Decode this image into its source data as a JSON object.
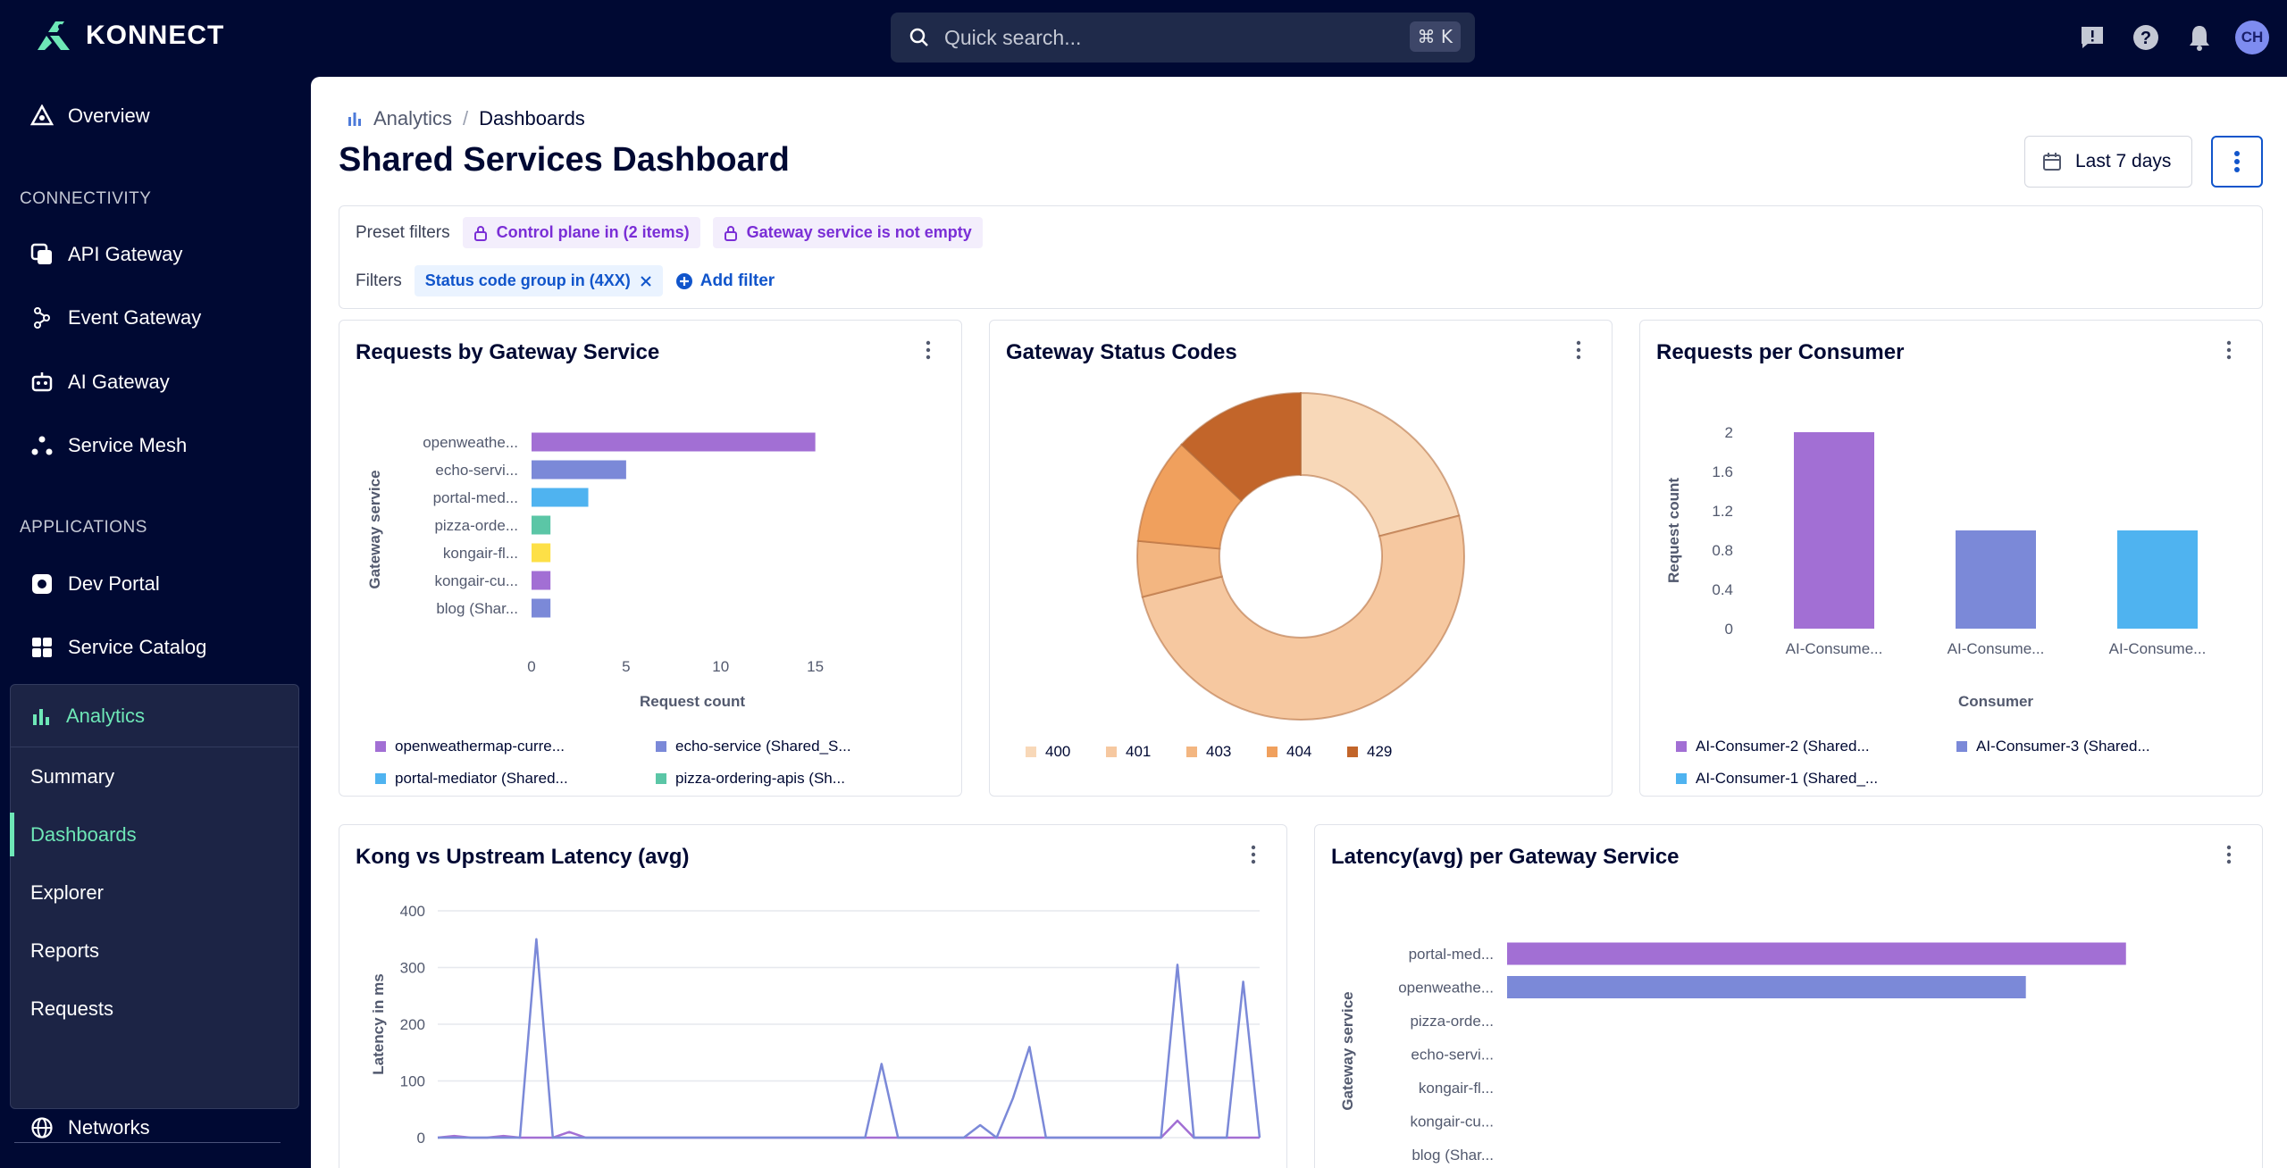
{
  "app": {
    "name": "KONNECT"
  },
  "search": {
    "placeholder": "Quick search...",
    "shortcut": "⌘ K"
  },
  "user": {
    "initials": "CH"
  },
  "sidebar": {
    "top_items": [
      {
        "label": "Overview",
        "icon": "overview-icon"
      }
    ],
    "sections": [
      {
        "label": "CONNECTIVITY",
        "items": [
          {
            "label": "API Gateway",
            "icon": "api-gateway-icon"
          },
          {
            "label": "Event Gateway",
            "icon": "event-gateway-icon"
          },
          {
            "label": "AI Gateway",
            "icon": "ai-gateway-icon"
          },
          {
            "label": "Service Mesh",
            "icon": "service-mesh-icon"
          }
        ]
      },
      {
        "label": "APPLICATIONS",
        "items": [
          {
            "label": "Dev Portal",
            "icon": "dev-portal-icon"
          },
          {
            "label": "Service Catalog",
            "icon": "service-catalog-icon"
          }
        ]
      }
    ],
    "analytics": {
      "label": "Analytics",
      "sub_items": [
        "Summary",
        "Dashboards",
        "Explorer",
        "Reports",
        "Requests"
      ],
      "active": "Dashboards"
    },
    "bottom_items": [
      {
        "label": "Networks",
        "icon": "globe-icon"
      }
    ]
  },
  "breadcrumb": {
    "parent": "Analytics",
    "current": "Dashboards",
    "separator": "/"
  },
  "page": {
    "title": "Shared Services Dashboard",
    "date_range": "Last 7 days"
  },
  "filters": {
    "preset_label": "Preset filters",
    "preset_chips": [
      "Control plane in (2 items)",
      "Gateway service is not empty"
    ],
    "filters_label": "Filters",
    "active_chips": [
      "Status code group in (4XX)"
    ],
    "add_filter": "Add filter"
  },
  "colors": {
    "accent": "#6ee7b7",
    "brand": "#000933",
    "link": "#1155cb"
  },
  "cards": {
    "gateway_service": {
      "title": "Requests by Gateway Service"
    },
    "status_codes": {
      "title": "Gateway Status Codes"
    },
    "per_consumer": {
      "title": "Requests per Consumer"
    },
    "latency_compare": {
      "title": "Kong vs Upstream Latency (avg)"
    },
    "latency_service": {
      "title": "Latency(avg) per Gateway Service"
    }
  },
  "chart_data": [
    {
      "id": "gateway_service",
      "type": "bar",
      "orientation": "horizontal",
      "title": "Requests by Gateway Service",
      "xlabel": "Request count",
      "ylabel": "Gateway service",
      "categories": [
        "openweathe...",
        "echo-servi...",
        "portal-med...",
        "pizza-orde...",
        "kongair-fl...",
        "kongair-cu...",
        "blog (Shar..."
      ],
      "values": [
        15,
        5,
        3,
        1,
        1,
        1,
        1
      ],
      "colors": [
        "#a26fd4",
        "#7b89d8",
        "#4fb3f0",
        "#5bc6a6",
        "#fde047",
        "#a26fd4",
        "#7b89d8"
      ],
      "xticks": [
        "0",
        "5",
        "10",
        "15"
      ],
      "xlim": [
        0,
        17
      ],
      "legend": [
        {
          "label": "openweathermap-curre...",
          "color": "#a26fd4"
        },
        {
          "label": "echo-service (Shared_S...",
          "color": "#7b89d8"
        },
        {
          "label": "portal-mediator (Shared...",
          "color": "#4fb3f0"
        },
        {
          "label": "pizza-ordering-apis (Sh...",
          "color": "#5bc6a6"
        }
      ]
    },
    {
      "id": "status_codes",
      "type": "pie",
      "title": "Gateway Status Codes",
      "slices": [
        {
          "label": "400",
          "value": 21,
          "color": "#f8d8b8"
        },
        {
          "label": "401",
          "value": 50,
          "color": "#f6c8a0"
        },
        {
          "label": "403",
          "value": 5.5,
          "color": "#f3b681"
        },
        {
          "label": "404",
          "value": 10.5,
          "color": "#f0a05d"
        },
        {
          "label": "429",
          "value": 13,
          "color": "#c2652a"
        }
      ],
      "legend_position": "bottom"
    },
    {
      "id": "per_consumer",
      "type": "bar",
      "title": "Requests per Consumer",
      "xlabel": "Consumer",
      "ylabel": "Request count",
      "categories": [
        "AI-Consume...",
        "AI-Consume...",
        "AI-Consume..."
      ],
      "values": [
        2,
        1,
        1
      ],
      "colors": [
        "#a26fd4",
        "#7b89d8",
        "#4fb3f0"
      ],
      "yticks": [
        "0",
        "0.4",
        "0.8",
        "1.2",
        "1.6",
        "2"
      ],
      "ylim": [
        0,
        2
      ],
      "legend": [
        {
          "label": "AI-Consumer-2 (Shared...",
          "color": "#a26fd4"
        },
        {
          "label": "AI-Consumer-3 (Shared...",
          "color": "#7b89d8"
        },
        {
          "label": "AI-Consumer-1 (Shared_...",
          "color": "#4fb3f0"
        }
      ]
    },
    {
      "id": "latency_compare",
      "type": "line",
      "title": "Kong vs Upstream Latency (avg)",
      "ylabel": "Latency in ms",
      "ylim": [
        0,
        400
      ],
      "yticks": [
        "400",
        "300",
        "200",
        "100",
        "0"
      ],
      "grid": true,
      "x": [
        0,
        2,
        4,
        6,
        8,
        10,
        12,
        14,
        16,
        18,
        20,
        22,
        24,
        26,
        28,
        30,
        32,
        34,
        36,
        38,
        40,
        42,
        44,
        46,
        48,
        50,
        52,
        54,
        56,
        58,
        60,
        62,
        64,
        66,
        68,
        70,
        72,
        74,
        76,
        78,
        80,
        82,
        84,
        86,
        88,
        90,
        92,
        94,
        96,
        98,
        100
      ],
      "series": [
        {
          "values": [
            0,
            3,
            0,
            0,
            3,
            0,
            0,
            0,
            10,
            0,
            0,
            0,
            0,
            0,
            0,
            0,
            0,
            0,
            0,
            0,
            0,
            0,
            0,
            0,
            0,
            0,
            0,
            0,
            0,
            0,
            0,
            0,
            0,
            0,
            0,
            0,
            0,
            0,
            0,
            0,
            0,
            0,
            0,
            0,
            0,
            30,
            0,
            0,
            0,
            0,
            0
          ],
          "color": "#a26fd4"
        },
        {
          "values": [
            0,
            0,
            0,
            0,
            0,
            0,
            350,
            0,
            0,
            0,
            0,
            0,
            0,
            0,
            0,
            0,
            0,
            0,
            0,
            0,
            0,
            0,
            0,
            0,
            0,
            0,
            0,
            130,
            0,
            0,
            0,
            0,
            0,
            22,
            0,
            70,
            160,
            0,
            0,
            0,
            0,
            0,
            0,
            0,
            0,
            305,
            0,
            0,
            0,
            275,
            0
          ],
          "color": "#7b89d8"
        }
      ]
    },
    {
      "id": "latency_service",
      "type": "bar",
      "orientation": "horizontal",
      "title": "Latency(avg) per Gateway Service",
      "ylabel": "Gateway service",
      "categories": [
        "portal-med...",
        "openweathe...",
        "pizza-orde...",
        "echo-servi...",
        "kongair-fl...",
        "kongair-cu...",
        "blog (Shar..."
      ],
      "values": [
        680,
        570,
        0,
        0,
        0,
        0,
        0
      ],
      "colors": [
        "#a26fd4",
        "#7b89d8",
        "#4fb3f0",
        "#5bc6a6",
        "#fde047",
        "#a26fd4",
        "#7b89d8"
      ],
      "xlim": [
        0,
        800
      ]
    }
  ]
}
